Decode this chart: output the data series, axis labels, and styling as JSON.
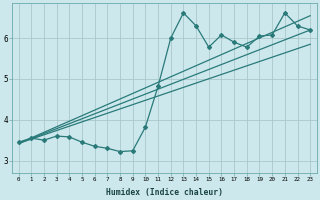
{
  "xlabel": "Humidex (Indice chaleur)",
  "ylabel": "",
  "bg_color": "#cce8ec",
  "grid_color": "#aac8cc",
  "line_color": "#2a7a7a",
  "xlim": [
    -0.5,
    23.5
  ],
  "ylim": [
    2.7,
    6.85
  ],
  "yticks": [
    3,
    4,
    5,
    6
  ],
  "xticks": [
    0,
    1,
    2,
    3,
    4,
    5,
    6,
    7,
    8,
    9,
    10,
    11,
    12,
    13,
    14,
    15,
    16,
    17,
    18,
    19,
    20,
    21,
    22,
    23
  ],
  "main_series_x": [
    0,
    1,
    2,
    3,
    4,
    5,
    6,
    7,
    8,
    9,
    10,
    11,
    12,
    13,
    14,
    15,
    16,
    17,
    18,
    19,
    20,
    21,
    22,
    23
  ],
  "main_series_y": [
    3.45,
    3.55,
    3.5,
    3.6,
    3.58,
    3.45,
    3.35,
    3.3,
    3.22,
    3.24,
    3.82,
    4.82,
    6.0,
    6.62,
    6.3,
    5.78,
    6.08,
    5.9,
    5.78,
    6.05,
    6.08,
    6.62,
    6.3,
    6.2
  ],
  "line1_x": [
    0,
    23
  ],
  "line1_y": [
    3.42,
    6.2
  ],
  "line2_x": [
    0,
    23
  ],
  "line2_y": [
    3.42,
    5.85
  ],
  "line3_x": [
    0,
    23
  ],
  "line3_y": [
    3.42,
    6.55
  ]
}
